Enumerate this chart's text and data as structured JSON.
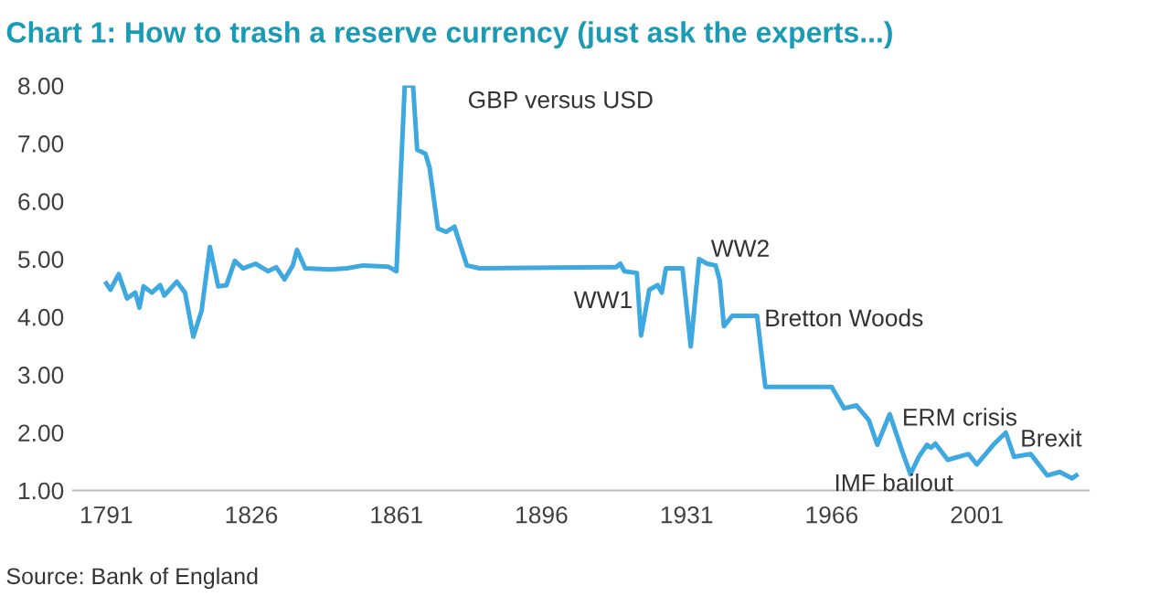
{
  "chart_data": {
    "type": "line",
    "title": "Chart 1: How to trash a reserve currency (just ask the experts...)",
    "x": [
      1791,
      1792,
      1794,
      1796,
      1798,
      1799,
      1800,
      1802,
      1804,
      1805,
      1808,
      1810,
      1812,
      1814,
      1816,
      1818,
      1820,
      1822,
      1824,
      1827,
      1830,
      1832,
      1834,
      1836,
      1837,
      1839,
      1845,
      1849,
      1853,
      1859,
      1861,
      1863,
      1865,
      1866,
      1868,
      1869,
      1871,
      1873,
      1875,
      1878,
      1881,
      1911,
      1914,
      1915,
      1916,
      1919,
      1920,
      1922,
      1924,
      1925,
      1926,
      1930,
      1932,
      1934,
      1936,
      1938,
      1939,
      1940,
      1942,
      1948,
      1950,
      1966,
      1969,
      1972,
      1975,
      1977,
      1980,
      1983,
      1985,
      1987,
      1989,
      1990,
      1991,
      1994,
      1999,
      2001,
      2005,
      2008,
      2010,
      2014,
      2018,
      2021,
      2024,
      2025
    ],
    "series": [
      {
        "color": "#3ea8e0",
        "values": [
          4.58,
          4.47,
          4.74,
          4.32,
          4.42,
          4.16,
          4.53,
          4.42,
          4.55,
          4.37,
          4.61,
          4.42,
          3.66,
          4.11,
          5.21,
          4.53,
          4.55,
          4.97,
          4.84,
          4.92,
          4.79,
          4.86,
          4.65,
          4.89,
          5.16,
          4.84,
          4.82,
          4.84,
          4.89,
          4.87,
          4.79,
          8.0,
          8.0,
          6.89,
          6.82,
          6.58,
          5.53,
          5.47,
          5.56,
          4.89,
          4.84,
          4.86,
          4.86,
          4.92,
          4.79,
          4.76,
          3.68,
          4.47,
          4.55,
          4.42,
          4.84,
          4.84,
          3.49,
          5.0,
          4.92,
          4.89,
          4.63,
          3.84,
          4.02,
          4.02,
          2.79,
          2.79,
          2.42,
          2.47,
          2.21,
          1.79,
          2.32,
          1.68,
          1.28,
          1.58,
          1.79,
          1.74,
          1.81,
          1.53,
          1.63,
          1.45,
          1.79,
          2.0,
          1.58,
          1.63,
          1.26,
          1.32,
          1.21,
          1.26
        ]
      }
    ],
    "xlim": [
      1783,
      2028
    ],
    "ylim": [
      1,
      8
    ],
    "xticks": [
      1791,
      1826,
      1861,
      1896,
      1931,
      1966,
      2001
    ],
    "yticks": [
      {
        "value": 1,
        "label": "1.00"
      },
      {
        "value": 2,
        "label": "2.00"
      },
      {
        "value": 3,
        "label": "3.00"
      },
      {
        "value": 4,
        "label": "4.00"
      },
      {
        "value": 5,
        "label": "5.00"
      },
      {
        "value": 6,
        "label": "6.00"
      },
      {
        "value": 7,
        "label": "7.00"
      },
      {
        "value": 8,
        "label": "8.00"
      }
    ],
    "grid": false,
    "annotations": [
      "GBP versus USD",
      "WW1",
      "WW2",
      "Bretton Woods",
      "ERM crisis",
      "Brexit",
      "IMF bailout",
      "Source: Bank of England"
    ]
  }
}
